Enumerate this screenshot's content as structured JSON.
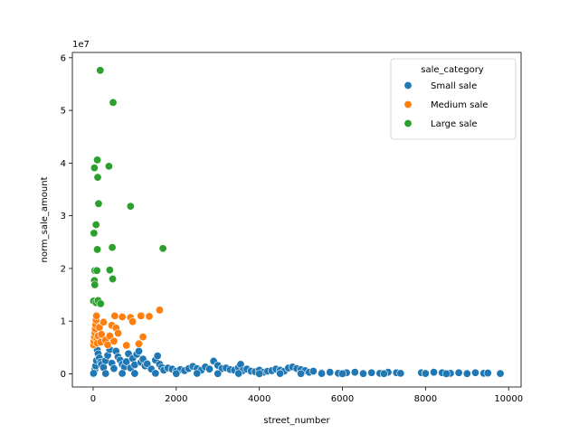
{
  "chart_data": {
    "type": "scatter",
    "xlabel": "street_number",
    "ylabel": "norm_sale_amount",
    "y_offset_text": "1e7",
    "xlim": [
      -500,
      10300
    ],
    "ylim": [
      -2500000,
      61000000
    ],
    "x_ticks": [
      0,
      2000,
      4000,
      6000,
      8000,
      10000
    ],
    "x_tick_labels": [
      "0",
      "2000",
      "4000",
      "6000",
      "8000",
      "10000"
    ],
    "y_ticks": [
      0,
      10000000,
      20000000,
      30000000,
      40000000,
      50000000,
      60000000
    ],
    "y_tick_labels": [
      "0",
      "1",
      "2",
      "3",
      "4",
      "5",
      "6"
    ],
    "grid": false,
    "legend": {
      "title": "sale_category",
      "placement": "top-right"
    },
    "series": [
      {
        "name": "Small sale",
        "color": "#1f77b4",
        "points": [
          [
            5,
            0
          ],
          [
            20,
            300000
          ],
          [
            40,
            800000
          ],
          [
            60,
            1500000
          ],
          [
            80,
            2500000
          ],
          [
            100,
            4500000
          ],
          [
            120,
            3800000
          ],
          [
            150,
            3000000
          ],
          [
            180,
            2200000
          ],
          [
            200,
            1800000
          ],
          [
            250,
            1200000
          ],
          [
            300,
            2500000
          ],
          [
            350,
            3500000
          ],
          [
            400,
            4600000
          ],
          [
            450,
            2000000
          ],
          [
            500,
            1000000
          ],
          [
            550,
            4300000
          ],
          [
            600,
            3200000
          ],
          [
            650,
            2600000
          ],
          [
            700,
            1800000
          ],
          [
            750,
            1300000
          ],
          [
            800,
            2300000
          ],
          [
            850,
            3800000
          ],
          [
            900,
            1100000
          ],
          [
            950,
            2900000
          ],
          [
            1000,
            1700000
          ],
          [
            1050,
            3700000
          ],
          [
            1100,
            4300000
          ],
          [
            1150,
            2200000
          ],
          [
            1200,
            2800000
          ],
          [
            1250,
            1500000
          ],
          [
            1300,
            1900000
          ],
          [
            1400,
            900000
          ],
          [
            1500,
            2600000
          ],
          [
            1550,
            3400000
          ],
          [
            1600,
            1800000
          ],
          [
            1650,
            1200000
          ],
          [
            1700,
            700000
          ],
          [
            1800,
            1100000
          ],
          [
            1900,
            900000
          ],
          [
            2000,
            500000
          ],
          [
            2100,
            800000
          ],
          [
            2200,
            600000
          ],
          [
            2300,
            1000000
          ],
          [
            2400,
            1400000
          ],
          [
            2500,
            1000000
          ],
          [
            2600,
            700000
          ],
          [
            2700,
            1300000
          ],
          [
            2800,
            900000
          ],
          [
            2900,
            2400000
          ],
          [
            3000,
            1600000
          ],
          [
            3100,
            1000000
          ],
          [
            3200,
            1100000
          ],
          [
            3300,
            800000
          ],
          [
            3400,
            700000
          ],
          [
            3500,
            1200000
          ],
          [
            3550,
            1800000
          ],
          [
            3600,
            600000
          ],
          [
            3700,
            900000
          ],
          [
            3800,
            500000
          ],
          [
            3900,
            400000
          ],
          [
            4000,
            700000
          ],
          [
            4100,
            300000
          ],
          [
            4200,
            500000
          ],
          [
            4300,
            600000
          ],
          [
            4400,
            900000
          ],
          [
            4500,
            700000
          ],
          [
            4600,
            500000
          ],
          [
            4700,
            1100000
          ],
          [
            4800,
            1300000
          ],
          [
            4900,
            1000000
          ],
          [
            5000,
            800000
          ],
          [
            5100,
            600000
          ],
          [
            5200,
            300000
          ],
          [
            5300,
            500000
          ],
          [
            5500,
            200000
          ],
          [
            5700,
            300000
          ],
          [
            5900,
            100000
          ],
          [
            6100,
            200000
          ],
          [
            6300,
            300000
          ],
          [
            6500,
            100000
          ],
          [
            6700,
            200000
          ],
          [
            6900,
            100000
          ],
          [
            7100,
            300000
          ],
          [
            7300,
            200000
          ],
          [
            7400,
            100000
          ],
          [
            7900,
            200000
          ],
          [
            8000,
            100000
          ],
          [
            8200,
            300000
          ],
          [
            8400,
            200000
          ],
          [
            8600,
            100000
          ],
          [
            8800,
            200000
          ],
          [
            9000,
            100000
          ],
          [
            9200,
            200000
          ],
          [
            9400,
            100000
          ],
          [
            9500,
            150000
          ],
          [
            9800,
            50000
          ],
          [
            10,
            100000
          ],
          [
            300,
            50000
          ],
          [
            700,
            80000
          ],
          [
            1000,
            60000
          ],
          [
            1500,
            90000
          ],
          [
            2000,
            40000
          ],
          [
            2500,
            70000
          ],
          [
            3000,
            30000
          ],
          [
            3500,
            60000
          ],
          [
            4000,
            20000
          ],
          [
            4500,
            50000
          ],
          [
            5000,
            30000
          ],
          [
            5500,
            60000
          ],
          [
            6000,
            20000
          ],
          [
            6500,
            40000
          ],
          [
            7000,
            30000
          ],
          [
            8000,
            60000
          ],
          [
            8500,
            20000
          ],
          [
            9000,
            40000
          ]
        ]
      },
      {
        "name": "Medium sale",
        "color": "#ff7f0e",
        "points": [
          [
            10,
            5500000
          ],
          [
            20,
            6200000
          ],
          [
            30,
            7000000
          ],
          [
            40,
            7800000
          ],
          [
            50,
            8500000
          ],
          [
            60,
            9300000
          ],
          [
            70,
            10200000
          ],
          [
            80,
            11000000
          ],
          [
            90,
            6500000
          ],
          [
            100,
            5800000
          ],
          [
            120,
            7200000
          ],
          [
            150,
            8800000
          ],
          [
            180,
            6000000
          ],
          [
            200,
            7500000
          ],
          [
            250,
            9800000
          ],
          [
            300,
            6400000
          ],
          [
            350,
            5500000
          ],
          [
            400,
            7200000
          ],
          [
            450,
            9200000
          ],
          [
            500,
            6200000
          ],
          [
            520,
            11000000
          ],
          [
            550,
            8700000
          ],
          [
            600,
            7700000
          ],
          [
            700,
            10800000
          ],
          [
            800,
            5400000
          ],
          [
            900,
            10700000
          ],
          [
            950,
            9900000
          ],
          [
            1100,
            5700000
          ],
          [
            1150,
            11000000
          ],
          [
            1200,
            7000000
          ],
          [
            1350,
            10900000
          ],
          [
            1600,
            12100000
          ]
        ]
      },
      {
        "name": "Large sale",
        "color": "#2ca02c",
        "points": [
          [
            170,
            57600000
          ],
          [
            480,
            51500000
          ],
          [
            100,
            40600000
          ],
          [
            380,
            39400000
          ],
          [
            30,
            39100000
          ],
          [
            110,
            37300000
          ],
          [
            130,
            32300000
          ],
          [
            900,
            31800000
          ],
          [
            70,
            28300000
          ],
          [
            20,
            26700000
          ],
          [
            460,
            24000000
          ],
          [
            100,
            23600000
          ],
          [
            1680,
            23800000
          ],
          [
            40,
            19600000
          ],
          [
            90,
            19600000
          ],
          [
            400,
            19700000
          ],
          [
            470,
            18000000
          ],
          [
            30,
            17700000
          ],
          [
            40,
            16900000
          ],
          [
            10,
            13800000
          ],
          [
            70,
            13500000
          ],
          [
            120,
            13900000
          ],
          [
            180,
            13300000
          ]
        ]
      }
    ]
  }
}
